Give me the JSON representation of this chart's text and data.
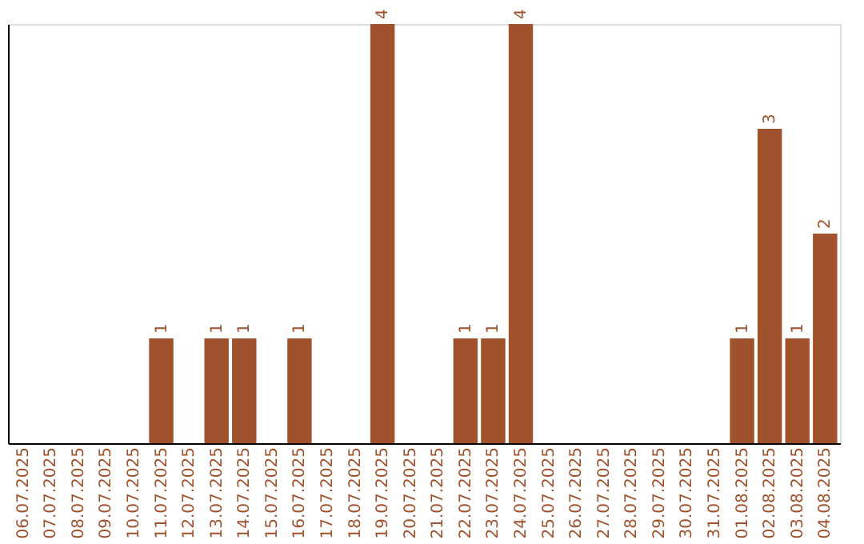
{
  "chart_data": {
    "type": "bar",
    "categories": [
      "06.07.2025",
      "07.07.2025",
      "08.07.2025",
      "09.07.2025",
      "10.07.2025",
      "11.07.2025",
      "12.07.2025",
      "13.07.2025",
      "14.07.2025",
      "15.07.2025",
      "16.07.2025",
      "17.07.2025",
      "18.07.2025",
      "19.07.2025",
      "20.07.2025",
      "21.07.2025",
      "22.07.2025",
      "23.07.2025",
      "24.07.2025",
      "25.07.2025",
      "26.07.2025",
      "27.07.2025",
      "28.07.2025",
      "29.07.2025",
      "30.07.2025",
      "31.07.2025",
      "01.08.2025",
      "02.08.2025",
      "03.08.2025",
      "04.08.2025"
    ],
    "values": [
      0,
      0,
      0,
      0,
      0,
      1,
      0,
      1,
      1,
      0,
      1,
      0,
      0,
      4,
      0,
      0,
      1,
      1,
      4,
      0,
      0,
      0,
      0,
      0,
      0,
      0,
      1,
      3,
      1,
      2
    ],
    "value_labels": [
      null,
      null,
      null,
      null,
      null,
      "1",
      null,
      "1",
      "1",
      null,
      "1",
      null,
      null,
      "4",
      null,
      null,
      "1",
      "1",
      "4",
      null,
      null,
      null,
      null,
      null,
      null,
      null,
      "1",
      "3",
      "1",
      "2"
    ],
    "color": "#a0522d",
    "ylim": [
      0,
      4
    ],
    "grid": false,
    "tick_labels": "x"
  }
}
